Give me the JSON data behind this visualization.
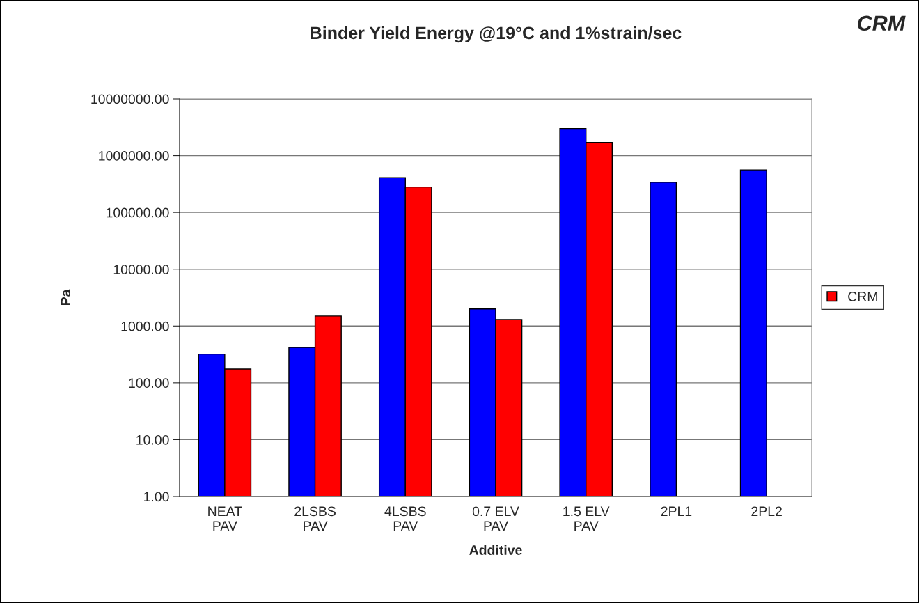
{
  "chart_data": {
    "type": "bar",
    "title": "Binder Yield Energy @19°C and 1%strain/sec",
    "xlabel": "Additive",
    "ylabel": "Pa",
    "categories": [
      "NEAT\nPAV",
      "2LSBS\nPAV",
      "4LSBS\nPAV",
      "0.7 ELV\nPAV",
      "1.5 ELV\nPAV",
      "2PL1",
      "2PL2"
    ],
    "series": [
      {
        "color": "#0000ff",
        "values": [
          320,
          420,
          410000,
          2000,
          3000000,
          340000,
          560000
        ]
      },
      {
        "name": "CRM",
        "color": "#ff0000",
        "values": [
          175,
          1500,
          280000,
          1300,
          1700000,
          null,
          null
        ]
      }
    ],
    "log": true,
    "ylim": [
      1,
      10000000
    ],
    "yticks": [
      {
        "value": 1,
        "label": "1.00"
      },
      {
        "value": 10,
        "label": "10.00"
      },
      {
        "value": 100,
        "label": "100.00"
      },
      {
        "value": 1000,
        "label": "1000.00"
      },
      {
        "value": 10000,
        "label": "10000.00"
      },
      {
        "value": 100000,
        "label": "100000.00"
      },
      {
        "value": 1000000,
        "label": "1000000.00"
      },
      {
        "value": 10000000,
        "label": "10000000.00"
      }
    ],
    "grid": "y",
    "legend": "right",
    "annotations": [
      "CRM"
    ]
  }
}
